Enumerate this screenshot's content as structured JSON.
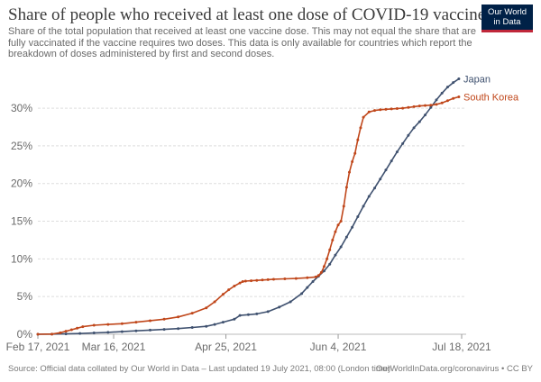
{
  "header": {
    "title": "Share of people who received at least one dose of COVID-19 vaccine",
    "subtitle": "Share of the total population that received at least one vaccine dose. This may not equal the share that are fully vaccinated if the vaccine requires two doses. This data is only available for countries which report the breakdown of doses administered by first and second doses.",
    "logo_line1": "Our World",
    "logo_line2": "in Data"
  },
  "footer": {
    "source": "Source: Official data collated by Our World in Data – Last updated 19 July 2021, 08:00 (London time)",
    "credit": "OurWorldInData.org/coronavirus • CC BY"
  },
  "colors": {
    "japan": "#3f516f",
    "south_korea": "#c0471b",
    "grid": "#dddddd",
    "axis_text": "#6a6a6a"
  },
  "chart_data": {
    "type": "line",
    "title": "Share of people who received at least one dose of COVID-19 vaccine",
    "xlabel": "",
    "ylabel": "",
    "x_unit": "days since Feb 17, 2021",
    "xlim": [
      0,
      151
    ],
    "ylim": [
      0,
      33
    ],
    "y_ticks": [
      {
        "value": 0,
        "label": "0%"
      },
      {
        "value": 5,
        "label": "5%"
      },
      {
        "value": 10,
        "label": "10%"
      },
      {
        "value": 15,
        "label": "15%"
      },
      {
        "value": 20,
        "label": "20%"
      },
      {
        "value": 25,
        "label": "25%"
      },
      {
        "value": 30,
        "label": "30%"
      }
    ],
    "x_ticks": [
      {
        "value": 0,
        "label": "Feb 17, 2021"
      },
      {
        "value": 27,
        "label": "Mar 16, 2021"
      },
      {
        "value": 67,
        "label": "Apr 25, 2021"
      },
      {
        "value": 107,
        "label": "Jun 4, 2021"
      },
      {
        "value": 151,
        "label": "Jul 18, 2021"
      }
    ],
    "grid": true,
    "legend": "inline at line ends",
    "series": [
      {
        "name": "Japan",
        "x": [
          0,
          5,
          10,
          15,
          20,
          25,
          30,
          35,
          40,
          45,
          50,
          55,
          60,
          63,
          66,
          70,
          72,
          75,
          78,
          82,
          86,
          90,
          94,
          96,
          98,
          100,
          102,
          104,
          106,
          108,
          110,
          112,
          114,
          116,
          118,
          120,
          122,
          124,
          126,
          128,
          130,
          132,
          134,
          136,
          138,
          140,
          142,
          144,
          146,
          148,
          150
        ],
        "values": [
          0,
          0.02,
          0.05,
          0.1,
          0.18,
          0.25,
          0.35,
          0.45,
          0.55,
          0.65,
          0.75,
          0.9,
          1.05,
          1.3,
          1.6,
          2.0,
          2.5,
          2.6,
          2.7,
          3.0,
          3.6,
          4.3,
          5.4,
          6.2,
          7.0,
          7.7,
          8.4,
          9.3,
          10.5,
          11.6,
          12.9,
          14.2,
          15.6,
          17.0,
          18.3,
          19.4,
          20.6,
          21.8,
          23.0,
          24.2,
          25.3,
          26.4,
          27.4,
          28.2,
          29.1,
          30.1,
          31.1,
          32.0,
          32.8,
          33.4,
          33.9
        ]
      },
      {
        "name": "South Korea",
        "x": [
          0,
          5,
          8,
          10,
          12,
          14,
          16,
          20,
          25,
          30,
          35,
          40,
          45,
          50,
          55,
          60,
          63,
          66,
          68,
          70,
          72,
          73,
          74,
          76,
          78,
          80,
          82,
          84,
          88,
          92,
          96,
          99,
          100,
          101,
          102,
          103,
          104,
          105,
          106,
          107,
          108,
          109,
          110,
          111,
          112,
          113,
          114,
          115,
          116,
          118,
          120,
          122,
          124,
          126,
          128,
          130,
          132,
          134,
          136,
          138,
          140,
          142,
          144,
          146,
          148,
          150
        ],
        "values": [
          0,
          0.02,
          0.2,
          0.4,
          0.6,
          0.8,
          1.0,
          1.2,
          1.3,
          1.4,
          1.6,
          1.8,
          2.0,
          2.3,
          2.8,
          3.5,
          4.3,
          5.3,
          5.9,
          6.4,
          6.8,
          7.0,
          7.05,
          7.1,
          7.15,
          7.2,
          7.25,
          7.3,
          7.35,
          7.4,
          7.5,
          7.6,
          7.8,
          8.2,
          9.0,
          10.0,
          11.2,
          12.5,
          13.6,
          14.5,
          15.0,
          17.0,
          19.5,
          21.5,
          22.9,
          24.0,
          25.8,
          27.4,
          28.8,
          29.5,
          29.7,
          29.8,
          29.85,
          29.9,
          29.95,
          30.0,
          30.1,
          30.2,
          30.3,
          30.35,
          30.4,
          30.5,
          30.7,
          31.0,
          31.3,
          31.5
        ]
      }
    ]
  }
}
